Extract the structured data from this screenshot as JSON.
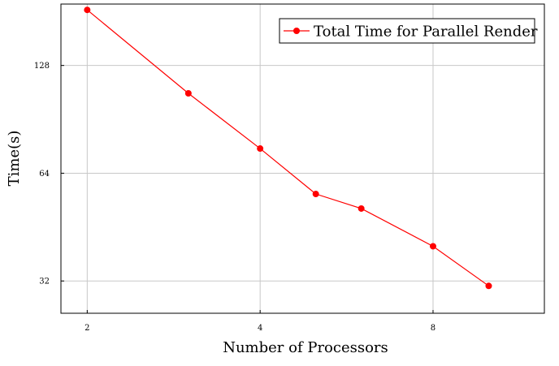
{
  "chart_data": {
    "type": "line",
    "xlabel": "Number of Processors",
    "ylabel": "Time(s)",
    "x_scale": "log2",
    "y_scale": "log2",
    "xlim": [
      1.8,
      12.5
    ],
    "ylim": [
      26,
      190
    ],
    "x_ticks": [
      2,
      4,
      8
    ],
    "x_tick_labels": [
      "2",
      "4",
      "8"
    ],
    "y_ticks": [
      32,
      64,
      128
    ],
    "y_tick_labels": [
      "32",
      "64",
      "128"
    ],
    "grid": true,
    "legend": "top-right",
    "series": [
      {
        "name": "Total Time for Parallel Render",
        "color": "#ff0000",
        "marker": "circle",
        "x": [
          2,
          3,
          4,
          5,
          6,
          8,
          10
        ],
        "y": [
          183,
          107,
          75,
          56,
          51,
          40,
          31
        ]
      }
    ]
  }
}
